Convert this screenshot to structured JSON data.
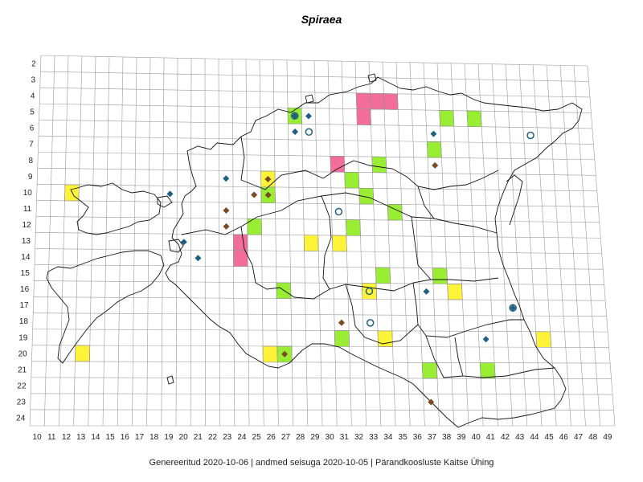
{
  "title": "Spiraea",
  "footer": "Genereeritud 2020-10-06  |  andmed seisuga 2020-10-05  |  Pärandkoosluste Kaitse Ühing",
  "colors": {
    "pink": "#f26d9a",
    "green": "#99ee33",
    "yellow": "#fff33a",
    "blue_diamond": "#1f6080",
    "brown_diamond": "#7a4a22",
    "circle": "#1f6080",
    "grid": "#9a9a9a",
    "coast": "#111111"
  },
  "axes": {
    "x_labels": [
      "10",
      "11",
      "12",
      "13",
      "14",
      "15",
      "16",
      "17",
      "18",
      "19",
      "20",
      "21",
      "22",
      "23",
      "24",
      "25",
      "26",
      "27",
      "28",
      "29",
      "30",
      "31",
      "32",
      "33",
      "34",
      "35",
      "36",
      "37",
      "38",
      "39",
      "40",
      "41",
      "42",
      "43",
      "44",
      "45",
      "46",
      "47",
      "48",
      "49"
    ],
    "y_labels": [
      "2",
      "3",
      "4",
      "5",
      "6",
      "7",
      "8",
      "9",
      "10",
      "11",
      "12",
      "13",
      "14",
      "15",
      "16",
      "17",
      "18",
      "19",
      "20",
      "21",
      "22",
      "23",
      "24"
    ]
  },
  "cells": [
    {
      "col": 33,
      "row": 4,
      "color": "pink"
    },
    {
      "col": 34,
      "row": 4,
      "color": "pink"
    },
    {
      "col": 35,
      "row": 4,
      "color": "pink"
    },
    {
      "col": 33,
      "row": 5,
      "color": "pink"
    },
    {
      "col": 28,
      "row": 5,
      "color": "green"
    },
    {
      "col": 39,
      "row": 5,
      "color": "green"
    },
    {
      "col": 41,
      "row": 5,
      "color": "green"
    },
    {
      "col": 38,
      "row": 7,
      "color": "green"
    },
    {
      "col": 31,
      "row": 8,
      "color": "pink"
    },
    {
      "col": 34,
      "row": 8,
      "color": "green"
    },
    {
      "col": 26,
      "row": 9,
      "color": "yellow"
    },
    {
      "col": 32,
      "row": 9,
      "color": "green"
    },
    {
      "col": 12,
      "row": 10,
      "color": "yellow"
    },
    {
      "col": 26,
      "row": 10,
      "color": "green"
    },
    {
      "col": 33,
      "row": 10,
      "color": "green"
    },
    {
      "col": 35,
      "row": 11,
      "color": "green"
    },
    {
      "col": 25,
      "row": 12,
      "color": "green"
    },
    {
      "col": 32,
      "row": 12,
      "color": "green"
    },
    {
      "col": 24,
      "row": 13,
      "color": "pink"
    },
    {
      "col": 29,
      "row": 13,
      "color": "yellow"
    },
    {
      "col": 31,
      "row": 13,
      "color": "yellow"
    },
    {
      "col": 24,
      "row": 14,
      "color": "pink"
    },
    {
      "col": 34,
      "row": 15,
      "color": "green"
    },
    {
      "col": 38,
      "row": 15,
      "color": "green"
    },
    {
      "col": 27,
      "row": 16,
      "color": "green"
    },
    {
      "col": 33,
      "row": 16,
      "color": "yellow"
    },
    {
      "col": 39,
      "row": 16,
      "color": "yellow"
    },
    {
      "col": 45,
      "row": 19,
      "color": "yellow"
    },
    {
      "col": 31,
      "row": 19,
      "color": "green"
    },
    {
      "col": 34,
      "row": 19,
      "color": "yellow"
    },
    {
      "col": 13,
      "row": 20,
      "color": "yellow"
    },
    {
      "col": 26,
      "row": 20,
      "color": "yellow"
    },
    {
      "col": 27,
      "row": 20,
      "color": "green"
    },
    {
      "col": 37,
      "row": 21,
      "color": "green"
    },
    {
      "col": 41,
      "row": 21,
      "color": "green"
    }
  ],
  "markers": [
    {
      "col": 28,
      "row": 5,
      "type": "blue_diamond"
    },
    {
      "col": 28,
      "row": 5,
      "type": "circle"
    },
    {
      "col": 29,
      "row": 5,
      "type": "blue_diamond"
    },
    {
      "col": 28,
      "row": 6,
      "type": "blue_diamond"
    },
    {
      "col": 29,
      "row": 6,
      "type": "circle"
    },
    {
      "col": 45,
      "row": 6,
      "type": "circle"
    },
    {
      "col": 38,
      "row": 6,
      "type": "blue_diamond"
    },
    {
      "col": 38,
      "row": 8,
      "type": "brown_diamond"
    },
    {
      "col": 23,
      "row": 9,
      "type": "blue_diamond"
    },
    {
      "col": 26,
      "row": 9,
      "type": "brown_diamond"
    },
    {
      "col": 19,
      "row": 10,
      "type": "blue_diamond"
    },
    {
      "col": 25,
      "row": 10,
      "type": "brown_diamond"
    },
    {
      "col": 26,
      "row": 10,
      "type": "brown_diamond"
    },
    {
      "col": 23,
      "row": 11,
      "type": "brown_diamond"
    },
    {
      "col": 31,
      "row": 11,
      "type": "circle"
    },
    {
      "col": 23,
      "row": 12,
      "type": "brown_diamond"
    },
    {
      "col": 20,
      "row": 13,
      "type": "blue_diamond"
    },
    {
      "col": 21,
      "row": 14,
      "type": "blue_diamond"
    },
    {
      "col": 37,
      "row": 16,
      "type": "blue_diamond"
    },
    {
      "col": 33,
      "row": 16,
      "type": "circle"
    },
    {
      "col": 43,
      "row": 17,
      "type": "blue_diamond"
    },
    {
      "col": 43,
      "row": 17,
      "type": "circle"
    },
    {
      "col": 31,
      "row": 18,
      "type": "brown_diamond"
    },
    {
      "col": 33,
      "row": 18,
      "type": "circle"
    },
    {
      "col": 41,
      "row": 19,
      "type": "blue_diamond"
    },
    {
      "col": 27,
      "row": 20,
      "type": "brown_diamond"
    },
    {
      "col": 37,
      "row": 23,
      "type": "brown_diamond"
    }
  ]
}
